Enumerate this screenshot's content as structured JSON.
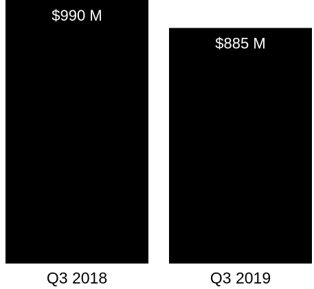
{
  "chart_data": {
    "type": "bar",
    "categories": [
      "Q3 2018",
      "Q3 2019"
    ],
    "values": [
      990,
      885
    ],
    "value_labels": [
      "$990 M",
      "$885 M"
    ],
    "title": "",
    "xlabel": "",
    "ylabel": "",
    "ylim": [
      0,
      990
    ],
    "grid": false,
    "legend": "none",
    "bar_color": "#000000",
    "label_color": "#ffffff"
  }
}
